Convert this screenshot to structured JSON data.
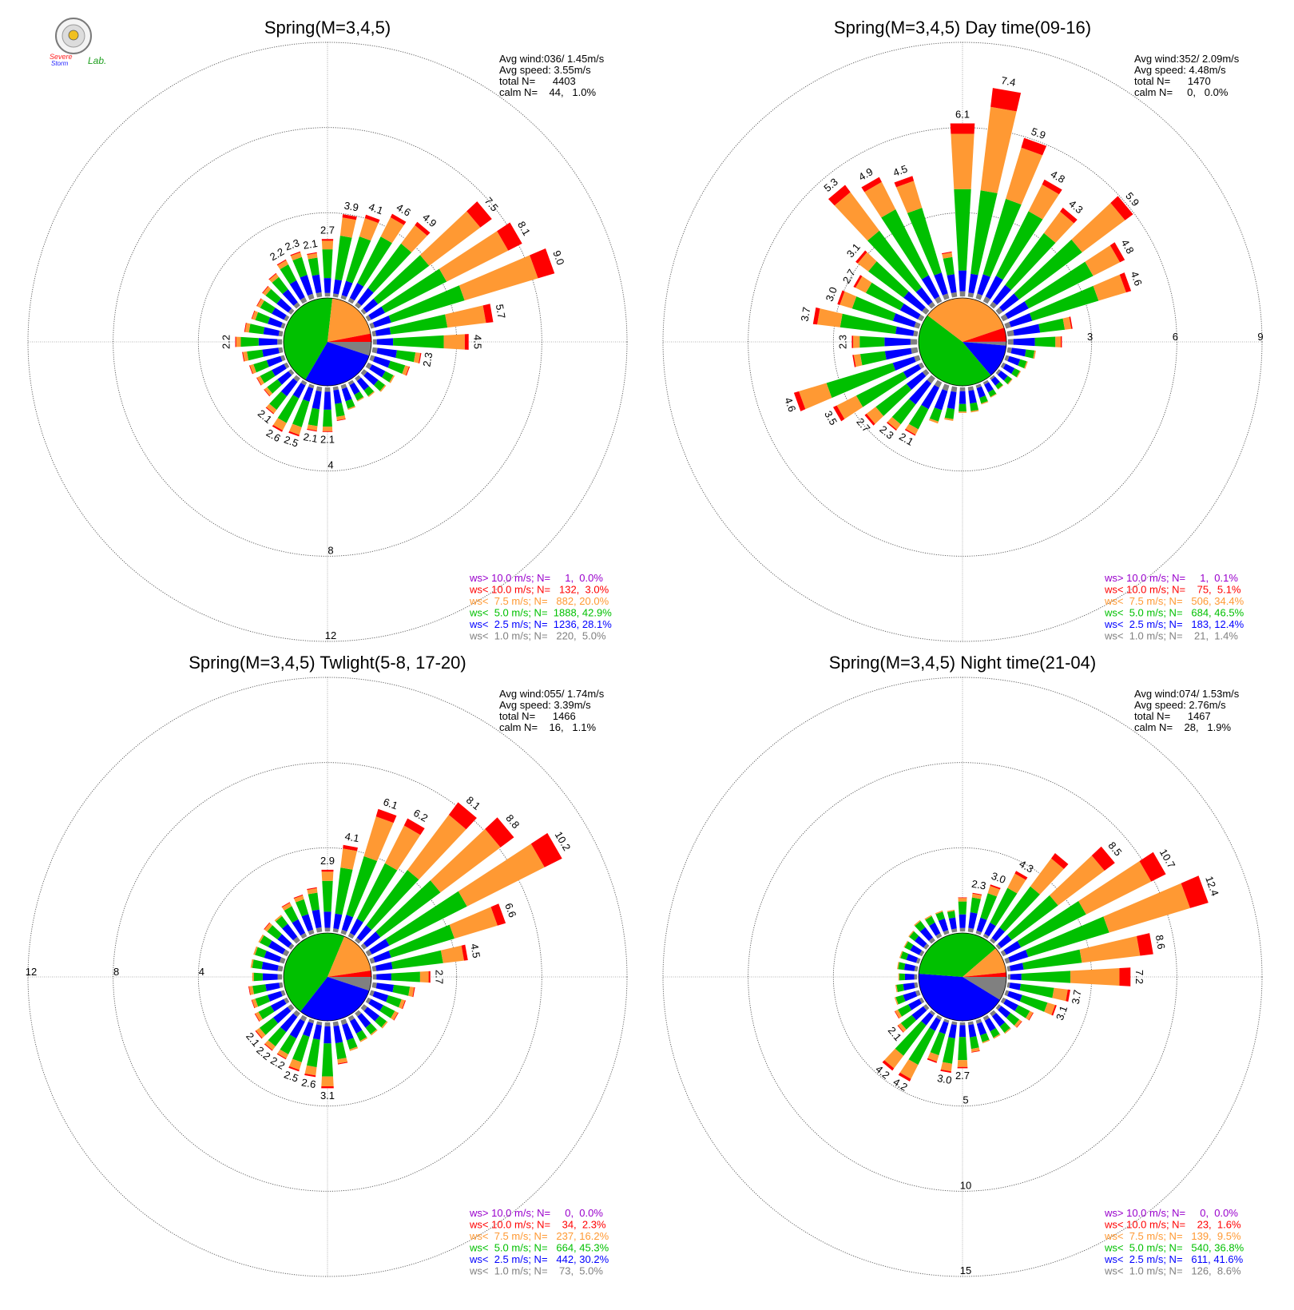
{
  "logo": {
    "text_line1": "Severe",
    "text_line2": "Storm",
    "text_line3": "Lab."
  },
  "bin_colors": [
    "#808080",
    "#0000ff",
    "#00c000",
    "#ff9933",
    "#ff0000",
    "#9900cc"
  ],
  "chart_data": [
    {
      "type": "polar-stacked-bar",
      "title": "Spring(M=3,4,5)",
      "rlim": [
        0,
        12
      ],
      "r_ticks": [
        "4",
        "8",
        "12"
      ],
      "tick_direction": "down",
      "pie_percent": [
        5.0,
        28.1,
        42.9,
        20.0,
        3.0,
        0.0
      ],
      "stats": [
        "Avg wind:036/ 1.45m/s",
        "Avg speed: 3.55m/s",
        "total N=      4403",
        "calm N=    44,   1.0%"
      ],
      "legend": [
        {
          "label": "ws> 10.0 m/s; N=     1,  0.0%",
          "color": "#9900cc"
        },
        {
          "label": "ws< 10.0 m/s; N=   132,  3.0%",
          "color": "#ff0000"
        },
        {
          "label": "ws<  7.5 m/s; N=   882, 20.0%",
          "color": "#ff9933"
        },
        {
          "label": "ws<  5.0 m/s; N=  1888, 42.9%",
          "color": "#00c000"
        },
        {
          "label": "ws<  2.5 m/s; N=  1236, 28.1%",
          "color": "#0000ff"
        },
        {
          "label": "ws<  1.0 m/s; N=   220,  5.0%",
          "color": "#808080"
        }
      ],
      "directions_deg": [
        0,
        10,
        20,
        30,
        40,
        50,
        60,
        70,
        80,
        90,
        100,
        110,
        120,
        130,
        140,
        150,
        160,
        170,
        180,
        190,
        200,
        210,
        220,
        230,
        240,
        250,
        260,
        270,
        280,
        290,
        300,
        310,
        320,
        330,
        340,
        350
      ],
      "totals": [
        2.7,
        3.9,
        4.1,
        4.6,
        4.9,
        7.5,
        8.1,
        9.0,
        5.7,
        4.5,
        2.3,
        1.9,
        1.4,
        1.3,
        1.1,
        1.0,
        1.2,
        1.6,
        2.1,
        2.1,
        2.5,
        2.6,
        2.1,
        1.6,
        1.6,
        1.7,
        1.9,
        2.2,
        1.8,
        1.6,
        1.6,
        1.7,
        1.9,
        2.2,
        2.3,
        2.1
      ],
      "labels": [
        "2.7",
        "3.9",
        "4.1",
        "4.6",
        "4.9",
        "7.5",
        "8.1",
        "9.0",
        "5.7",
        "4.5",
        "2.3",
        "",
        "",
        "",
        "",
        "",
        "",
        "",
        "2.1",
        "2.1",
        "2.5",
        "2.6",
        "2.1",
        "",
        "",
        "",
        "",
        "2.2",
        "",
        "",
        "",
        "",
        "",
        "2.2",
        "2.3",
        "2.1"
      ]
    },
    {
      "type": "polar-stacked-bar",
      "title": "Spring(M=3,4,5) Day time(09-16)",
      "rlim": [
        0,
        9
      ],
      "r_ticks": [
        "3",
        "6",
        "9"
      ],
      "tick_direction": "right",
      "pie_percent": [
        1.4,
        12.4,
        46.5,
        34.4,
        5.1,
        0.1
      ],
      "stats": [
        "Avg wind:352/ 2.09m/s",
        "Avg speed: 4.48m/s",
        "total N=      1470",
        "calm N=     0,   0.0%"
      ],
      "legend": [
        {
          "label": "ws> 10.0 m/s; N=     1,  0.1%",
          "color": "#9900cc"
        },
        {
          "label": "ws< 10.0 m/s; N=    75,  5.1%",
          "color": "#ff0000"
        },
        {
          "label": "ws<  7.5 m/s; N=   506, 34.4%",
          "color": "#ff9933"
        },
        {
          "label": "ws<  5.0 m/s; N=   684, 46.5%",
          "color": "#00c000"
        },
        {
          "label": "ws<  2.5 m/s; N=   183, 12.4%",
          "color": "#0000ff"
        },
        {
          "label": "ws<  1.0 m/s; N=    21,  1.4%",
          "color": "#808080"
        }
      ],
      "directions_deg": [
        0,
        10,
        20,
        30,
        40,
        50,
        60,
        70,
        80,
        90,
        100,
        110,
        120,
        130,
        140,
        150,
        160,
        170,
        180,
        190,
        200,
        210,
        220,
        230,
        240,
        250,
        260,
        270,
        280,
        290,
        300,
        310,
        320,
        330,
        340,
        350
      ],
      "totals": [
        6.1,
        7.4,
        5.9,
        4.8,
        4.3,
        5.9,
        4.8,
        4.6,
        2.3,
        1.9,
        1.0,
        0.8,
        0.7,
        0.6,
        0.5,
        0.6,
        0.7,
        0.9,
        0.9,
        1.2,
        1.4,
        2.1,
        2.3,
        2.7,
        3.5,
        4.6,
        2.3,
        2.3,
        3.7,
        3.0,
        2.7,
        3.1,
        5.3,
        4.9,
        4.5,
        1.6
      ],
      "labels": [
        "6.1",
        "7.4",
        "5.9",
        "4.8",
        "4.3",
        "5.9",
        "4.8",
        "4.6",
        "",
        "",
        "",
        "",
        "",
        "",
        "",
        "",
        "",
        "",
        "",
        "",
        "",
        "2.1",
        "2.3",
        "2.7",
        "3.5",
        "4.6",
        "",
        "2.3",
        "3.7",
        "3.0",
        "2.7",
        "3.1",
        "5.3",
        "4.9",
        "4.5",
        ""
      ]
    },
    {
      "type": "polar-stacked-bar",
      "title": "Spring(M=3,4,5) Twlight(5-8, 17-20)",
      "rlim": [
        0,
        12
      ],
      "r_ticks": [
        "4",
        "8",
        "12"
      ],
      "tick_direction": "left",
      "pie_percent": [
        5.0,
        30.2,
        45.3,
        16.2,
        2.3,
        0.0
      ],
      "stats": [
        "Avg wind:055/ 1.74m/s",
        "Avg speed: 3.39m/s",
        "total N=      1466",
        "calm N=    16,   1.1%"
      ],
      "legend": [
        {
          "label": "ws> 10.0 m/s; N=     0,  0.0%",
          "color": "#9900cc"
        },
        {
          "label": "ws< 10.0 m/s; N=    34,  2.3%",
          "color": "#ff0000"
        },
        {
          "label": "ws<  7.5 m/s; N=   237, 16.2%",
          "color": "#ff9933"
        },
        {
          "label": "ws<  5.0 m/s; N=   664, 45.3%",
          "color": "#00c000"
        },
        {
          "label": "ws<  2.5 m/s; N=   442, 30.2%",
          "color": "#0000ff"
        },
        {
          "label": "ws<  1.0 m/s; N=    73,  5.0%",
          "color": "#808080"
        }
      ],
      "directions_deg": [
        0,
        10,
        20,
        30,
        40,
        50,
        60,
        70,
        80,
        90,
        100,
        110,
        120,
        130,
        140,
        150,
        160,
        170,
        180,
        190,
        200,
        210,
        220,
        230,
        240,
        250,
        260,
        270,
        280,
        290,
        300,
        310,
        320,
        330,
        340,
        350
      ],
      "totals": [
        2.9,
        4.1,
        6.1,
        6.2,
        8.1,
        8.8,
        10.2,
        6.6,
        4.5,
        2.7,
        2.0,
        1.7,
        1.6,
        1.4,
        1.3,
        1.3,
        1.5,
        2.0,
        3.1,
        2.6,
        2.5,
        2.2,
        2.2,
        2.1,
        1.7,
        1.6,
        1.6,
        1.4,
        1.5,
        1.5,
        1.5,
        1.6,
        1.5,
        1.8,
        1.9,
        2.1
      ],
      "labels": [
        "2.9",
        "4.1",
        "6.1",
        "6.2",
        "8.1",
        "8.8",
        "10.2",
        "6.6",
        "4.5",
        "2.7",
        "",
        "",
        "",
        "",
        "",
        "",
        "",
        "",
        "3.1",
        "2.6",
        "2.5",
        "2.2",
        "2.2",
        "2.1",
        "",
        "",
        "",
        "",
        "",
        "",
        "",
        "",
        "",
        "",
        "",
        ""
      ]
    },
    {
      "type": "polar-stacked-bar",
      "title": "Spring(M=3,4,5) Night time(21-04)",
      "rlim": [
        0,
        15
      ],
      "r_ticks": [
        "5",
        "10",
        "15"
      ],
      "tick_direction": "down",
      "pie_percent": [
        8.6,
        41.6,
        36.8,
        9.5,
        1.6,
        0.0
      ],
      "stats": [
        "Avg wind:074/ 1.53m/s",
        "Avg speed: 2.76m/s",
        "total N=      1467",
        "calm N=    28,   1.9%"
      ],
      "legend": [
        {
          "label": "ws> 10.0 m/s; N=     0,  0.0%",
          "color": "#9900cc"
        },
        {
          "label": "ws< 10.0 m/s; N=    23,  1.6%",
          "color": "#ff0000"
        },
        {
          "label": "ws<  7.5 m/s; N=   139,  9.5%",
          "color": "#ff9933"
        },
        {
          "label": "ws<  5.0 m/s; N=   540, 36.8%",
          "color": "#00c000"
        },
        {
          "label": "ws<  2.5 m/s; N=   611, 41.6%",
          "color": "#0000ff"
        },
        {
          "label": "ws<  1.0 m/s; N=   126,  8.6%",
          "color": "#808080"
        }
      ],
      "directions_deg": [
        0,
        10,
        20,
        30,
        40,
        50,
        60,
        70,
        80,
        90,
        100,
        110,
        120,
        130,
        140,
        150,
        160,
        170,
        180,
        190,
        200,
        210,
        220,
        230,
        240,
        250,
        260,
        270,
        280,
        290,
        300,
        310,
        320,
        330,
        340,
        350
      ],
      "totals": [
        2.0,
        2.3,
        3.0,
        4.3,
        6.4,
        8.5,
        10.7,
        12.4,
        8.6,
        7.2,
        3.7,
        3.1,
        2.0,
        1.7,
        1.5,
        1.4,
        1.4,
        1.8,
        2.7,
        3.0,
        2.6,
        4.2,
        4.2,
        2.1,
        1.8,
        1.5,
        1.3,
        1.1,
        1.2,
        1.2,
        1.2,
        1.3,
        1.5,
        1.4,
        1.4,
        1.3
      ],
      "labels": [
        "",
        "2.3",
        "3.0",
        "4.3",
        "",
        "8.5",
        "10.7",
        "12.4",
        "8.6",
        "7.2",
        "3.7",
        "3.1",
        "",
        "",
        "",
        "",
        "",
        "",
        "2.7",
        "3.0",
        "",
        "4.2",
        "4.2",
        "2.1",
        "",
        "",
        "",
        "",
        "",
        "",
        "",
        "",
        "",
        "",
        "",
        ""
      ]
    }
  ]
}
